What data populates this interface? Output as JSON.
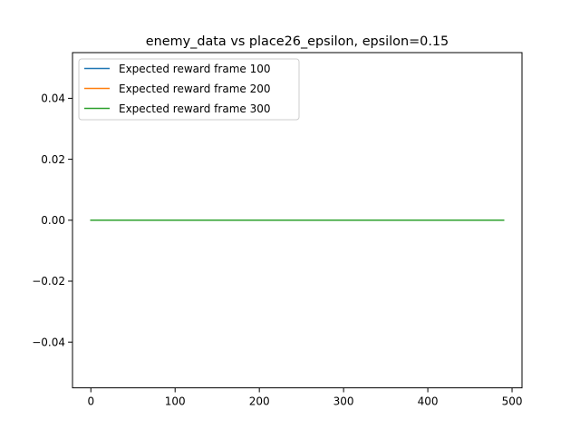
{
  "chart_data": {
    "type": "line",
    "title": "enemy_data vs place26_epsilon, epsilon=0.15",
    "xlabel": "",
    "ylabel": "",
    "xlim": [
      -21.8,
      511.8
    ],
    "ylim": [
      -0.055,
      0.055
    ],
    "xticks": [
      0,
      100,
      200,
      300,
      400,
      500
    ],
    "xtick_labels": [
      "0",
      "100",
      "200",
      "300",
      "400",
      "500"
    ],
    "yticks": [
      -0.04,
      -0.02,
      0.0,
      0.02,
      0.04
    ],
    "ytick_labels": [
      "−0.04",
      "−0.02",
      "0.00",
      "0.02",
      "0.04"
    ],
    "grid": false,
    "legend_position": "top-left",
    "x": [
      0,
      490
    ],
    "series": [
      {
        "name": "Expected reward frame 100",
        "color": "#1f77b4",
        "values": [
          0.0,
          0.0
        ]
      },
      {
        "name": "Expected reward frame 200",
        "color": "#ff7f0e",
        "values": [
          0.0,
          0.0
        ]
      },
      {
        "name": "Expected reward frame 300",
        "color": "#2ca02c",
        "values": [
          0.0,
          0.0
        ]
      }
    ]
  }
}
